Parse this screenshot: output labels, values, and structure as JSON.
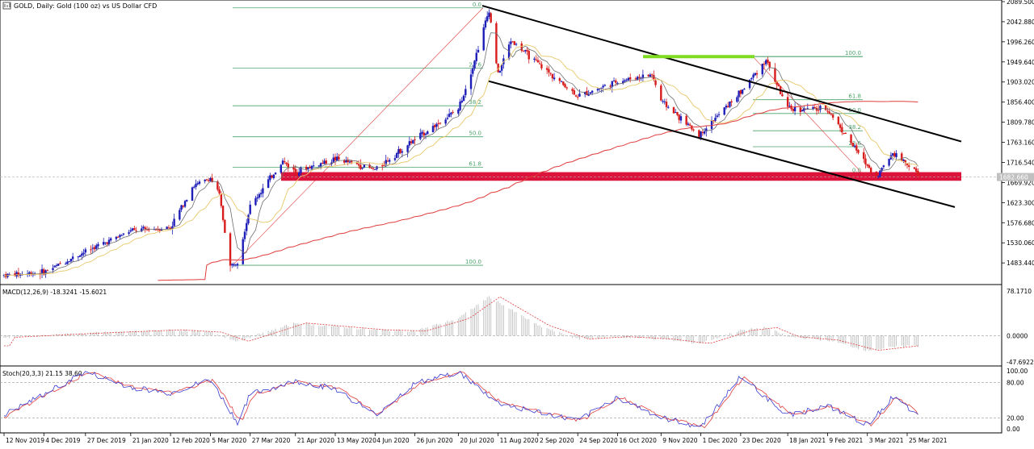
{
  "header": {
    "title": "GOLD, Daily:  Gold (100 oz) vs US Dollar CFD"
  },
  "colors": {
    "bull": "#1d1db8",
    "bear": "#d81b1b",
    "sma_fast": "#6e6e6e",
    "sma_mid": "#e8c86a",
    "sma_slow": "#e03c3c",
    "fib": "#4aa36a",
    "zone": "#dc143c",
    "highlight": "#7ddc1f",
    "trend": "#000000",
    "macd_hist": "#bdbdbd",
    "macd_signal": "#e03c3c",
    "stoch_main": "#3a3ad0",
    "stoch_signal": "#e03c3c",
    "panel_line": "#000000"
  },
  "chart_data": [
    {
      "type": "candlestick",
      "title": "GOLD, Daily:  Gold (100 oz) vs US Dollar CFD",
      "xlabel": "",
      "ylabel": "",
      "x_tick_labels": [
        "12 Nov 2019",
        "4 Dec 2019",
        "27 Dec 2019",
        "21 Jan 2020",
        "12 Feb 2020",
        "5 Mar 2020",
        "27 Mar 2020",
        "21 Apr 2020",
        "13 May 2020",
        "4 Jun 2020",
        "26 Jun 2020",
        "20 Jul 2020",
        "11 Aug 2020",
        "2 Sep 2020",
        "24 Sep 2020",
        "16 Oct 2020",
        "9 Nov 2020",
        "1 Dec 2020",
        "23 Dec 2020",
        "18 Jan 2021",
        "9 Feb 2021",
        "3 Mar 2021",
        "25 Mar 2021"
      ],
      "y_tick_labels": [
        "2089.500",
        "2042.880",
        "1996.260",
        "1949.640",
        "1903.020",
        "1856.400",
        "1809.780",
        "1763.160",
        "1716.540",
        "1669.920",
        "1623.300",
        "1576.680",
        "1530.060",
        "1483.440"
      ],
      "ylim": [
        1437,
        2089.5
      ],
      "current_price_label": "1682.660",
      "price_path": [
        [
          "12 Nov 2019",
          1455
        ],
        [
          "4 Dec 2019",
          1462
        ],
        [
          "27 Dec 2019",
          1510
        ],
        [
          "21 Jan 2020",
          1558
        ],
        [
          "12 Feb 2020",
          1566
        ],
        [
          "24 Feb 2020",
          1660
        ],
        [
          "5 Mar 2020",
          1680
        ],
        [
          "10 Mar 2020",
          1640
        ],
        [
          "16 Mar 2020",
          1475
        ],
        [
          "20 Mar 2020",
          1490
        ],
        [
          "27 Mar 2020",
          1615
        ],
        [
          "14 Apr 2020",
          1720
        ],
        [
          "21 Apr 2020",
          1695
        ],
        [
          "13 May 2020",
          1725
        ],
        [
          "4 Jun 2020",
          1700
        ],
        [
          "26 Jun 2020",
          1770
        ],
        [
          "20 Jul 2020",
          1840
        ],
        [
          "28 Jul 2020",
          1940
        ],
        [
          "6 Aug 2020",
          2070
        ],
        [
          "11 Aug 2020",
          1920
        ],
        [
          "18 Aug 2020",
          2000
        ],
        [
          "2 Sep 2020",
          1945
        ],
        [
          "24 Sep 2020",
          1870
        ],
        [
          "16 Oct 2020",
          1905
        ],
        [
          "4 Nov 2020",
          1920
        ],
        [
          "9 Nov 2020",
          1860
        ],
        [
          "30 Nov 2020",
          1780
        ],
        [
          "23 Dec 2020",
          1880
        ],
        [
          "6 Jan 2021",
          1955
        ],
        [
          "18 Jan 2021",
          1840
        ],
        [
          "9 Feb 2021",
          1840
        ],
        [
          "1 Mar 2021",
          1720
        ],
        [
          "8 Mar 2021",
          1683
        ],
        [
          "17 Mar 2021",
          1740
        ],
        [
          "29 Mar 2021",
          1700
        ],
        [
          "31 Mar 2021",
          1683
        ]
      ],
      "fibonacci_1": {
        "levels": [
          {
            "label": "0.0",
            "value": 2075
          },
          {
            "label": "23.6",
            "value": 1935
          },
          {
            "label": "38.2",
            "value": 1848
          },
          {
            "label": "50.0",
            "value": 1776
          },
          {
            "label": "61.8",
            "value": 1705
          },
          {
            "label": "100.0",
            "value": 1478
          }
        ]
      },
      "fibonacci_2": {
        "levels": [
          {
            "label": "100.0",
            "value": 1962
          },
          {
            "label": "61.8",
            "value": 1862
          },
          {
            "label": "50.0",
            "value": 1830
          },
          {
            "label": "38.2",
            "value": 1790
          },
          {
            "label": "23.6",
            "value": 1753
          },
          {
            "label": "0.0",
            "value": 1690
          }
        ]
      },
      "support_zone": [
        1674,
        1694
      ],
      "resistance_highlight": 1962,
      "moving_averages": [
        "fast",
        "mid",
        "slow (200)"
      ]
    },
    {
      "type": "histogram",
      "indicator": "MACD",
      "label": "MACD(12,26,9) -18.3241 -15.6021",
      "y_tick_labels": [
        "78.1710",
        "0.0000",
        "-47.6922"
      ],
      "ylim": [
        -47.6922,
        78.171
      ],
      "path": [
        [
          "12 Nov 2019",
          -3
        ],
        [
          "27 Dec 2019",
          4
        ],
        [
          "12 Feb 2020",
          10
        ],
        [
          "5 Mar 2020",
          6
        ],
        [
          "20 Mar 2020",
          -10
        ],
        [
          "21 Apr 2020",
          22
        ],
        [
          "4 Jun 2020",
          10
        ],
        [
          "26 Jun 2020",
          8
        ],
        [
          "20 Jul 2020",
          30
        ],
        [
          "6 Aug 2020",
          68
        ],
        [
          "2 Sep 2020",
          18
        ],
        [
          "24 Sep 2020",
          -6
        ],
        [
          "16 Oct 2020",
          -2
        ],
        [
          "9 Nov 2020",
          -6
        ],
        [
          "30 Nov 2020",
          -14
        ],
        [
          "23 Dec 2020",
          9
        ],
        [
          "6 Jan 2021",
          14
        ],
        [
          "18 Jan 2021",
          -2
        ],
        [
          "9 Feb 2021",
          -8
        ],
        [
          "3 Mar 2021",
          -26
        ],
        [
          "25 Mar 2021",
          -18
        ]
      ]
    },
    {
      "type": "line",
      "indicator": "Stochastic",
      "label": "Stoch(20,3,3) 21.15 38.60",
      "y_tick_labels": [
        "100.00",
        "80.00",
        "20.00",
        "0.00"
      ],
      "ylim": [
        0,
        100
      ],
      "levels": [
        80,
        20
      ],
      "path": [
        [
          "12 Nov 2019",
          25
        ],
        [
          "4 Dec 2019",
          60
        ],
        [
          "27 Dec 2019",
          98
        ],
        [
          "21 Jan 2020",
          72
        ],
        [
          "12 Feb 2020",
          62
        ],
        [
          "5 Mar 2020",
          85
        ],
        [
          "20 Mar 2020",
          12
        ],
        [
          "27 Mar 2020",
          60
        ],
        [
          "21 Apr 2020",
          82
        ],
        [
          "13 May 2020",
          70
        ],
        [
          "4 Jun 2020",
          25
        ],
        [
          "26 Jun 2020",
          78
        ],
        [
          "20 Jul 2020",
          98
        ],
        [
          "11 Aug 2020",
          45
        ],
        [
          "2 Sep 2020",
          30
        ],
        [
          "24 Sep 2020",
          15
        ],
        [
          "16 Oct 2020",
          55
        ],
        [
          "9 Nov 2020",
          20
        ],
        [
          "1 Dec 2020",
          5
        ],
        [
          "23 Dec 2020",
          90
        ],
        [
          "18 Jan 2021",
          25
        ],
        [
          "9 Feb 2021",
          40
        ],
        [
          "3 Mar 2021",
          8
        ],
        [
          "17 Mar 2021",
          55
        ],
        [
          "25 Mar 2021",
          38
        ],
        [
          "31 Mar 2021",
          21
        ]
      ]
    }
  ]
}
